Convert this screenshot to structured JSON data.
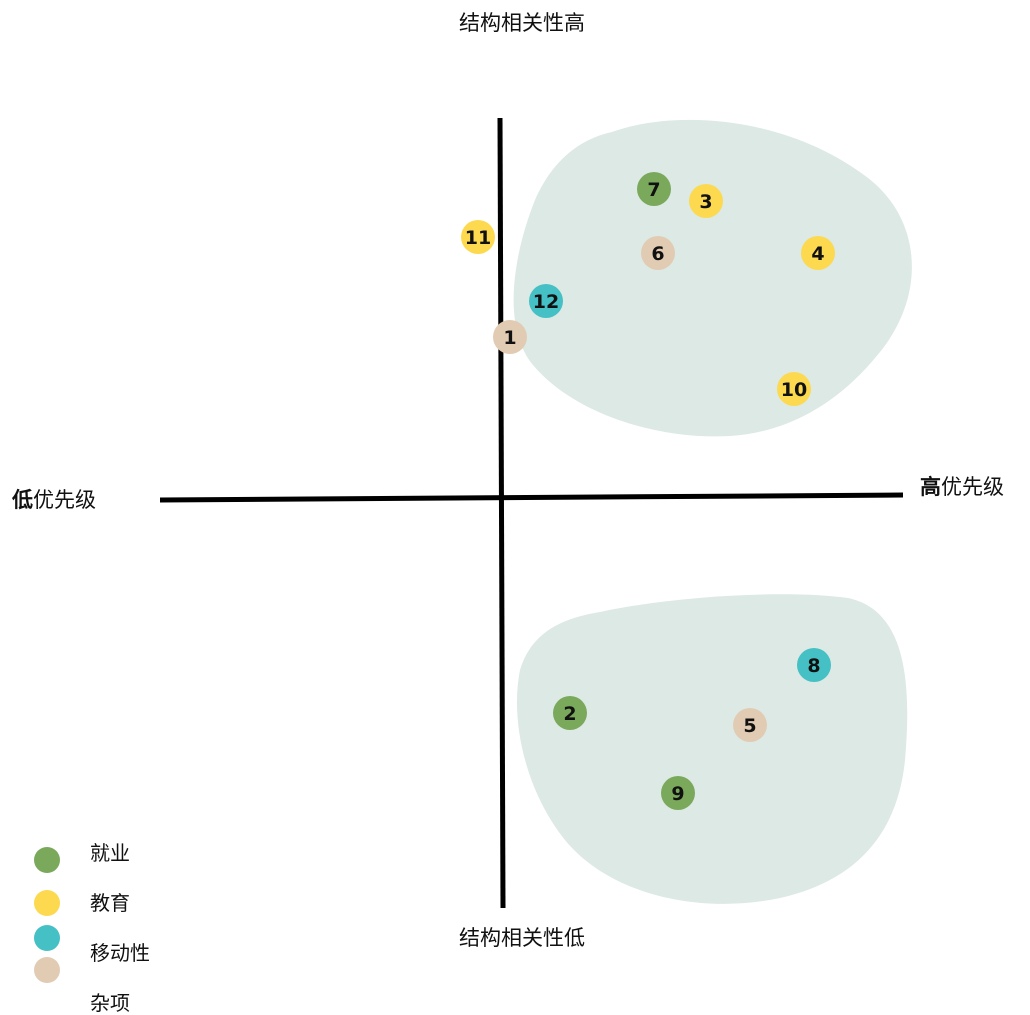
{
  "chart_data": {
    "type": "scatter",
    "axes": {
      "top": "结构相关性高",
      "bottom": "结构相关性低",
      "left_bold": "低",
      "left_rest": "优先级",
      "right_bold": "高",
      "right_rest": "优先级"
    },
    "colors": {
      "就业": "#7aa95c",
      "教育": "#fcd94f",
      "移动性": "#45c0c5",
      "杂项": "#e2cbb3",
      "cluster": "#dce9e4"
    },
    "points": [
      {
        "label": "1",
        "category": "杂项",
        "x": 0.2,
        "y": 4.0
      },
      {
        "label": "2",
        "category": "就业",
        "x": 1.7,
        "y": -5.4
      },
      {
        "label": "3",
        "category": "教育",
        "x": 5.1,
        "y": 7.4
      },
      {
        "label": "4",
        "category": "教育",
        "x": 7.9,
        "y": 6.1
      },
      {
        "label": "5",
        "category": "杂项",
        "x": 6.2,
        "y": -5.7
      },
      {
        "label": "6",
        "category": "杂项",
        "x": 3.9,
        "y": 6.1
      },
      {
        "label": "7",
        "category": "就业",
        "x": 3.8,
        "y": 7.7
      },
      {
        "label": "8",
        "category": "移动性",
        "x": 7.8,
        "y": -4.2
      },
      {
        "label": "9",
        "category": "就业",
        "x": 4.4,
        "y": -7.4
      },
      {
        "label": "10",
        "category": "教育",
        "x": 7.3,
        "y": 2.7
      },
      {
        "label": "11",
        "category": "教育",
        "x": -0.6,
        "y": 6.5
      },
      {
        "label": "12",
        "category": "移动性",
        "x": 1.1,
        "y": 4.9
      }
    ],
    "legend": [
      {
        "name": "就业",
        "color": "#7aa95c"
      },
      {
        "name": "教育",
        "color": "#fcd94f"
      },
      {
        "name": "移动性",
        "color": "#45c0c5"
      },
      {
        "name": "杂项",
        "color": "#e2cbb3"
      }
    ]
  }
}
